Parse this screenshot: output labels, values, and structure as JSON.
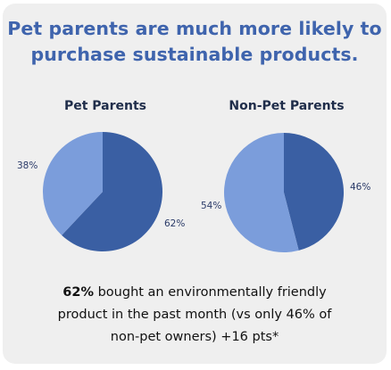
{
  "headline": {
    "line1": "Pet parents are much more likely to",
    "line2": "purchase sustainable products."
  },
  "colors": {
    "dark": "#3a5fa3",
    "light": "#7b9ddb",
    "title": "#3f64ad",
    "card": "#efefef"
  },
  "chart_data": [
    {
      "type": "pie",
      "title": "Pet Parents",
      "slices": [
        {
          "label": "62%",
          "value": 62,
          "color": "#3a5fa3"
        },
        {
          "label": "38%",
          "value": 38,
          "color": "#7b9ddb"
        }
      ]
    },
    {
      "type": "pie",
      "title": "Non-Pet Parents",
      "slices": [
        {
          "label": "46%",
          "value": 46,
          "color": "#3a5fa3"
        },
        {
          "label": "54%",
          "value": 54,
          "color": "#7b9ddb"
        }
      ]
    }
  ],
  "summary": {
    "highlight": "62%",
    "line1_rest": " bought an environmentally friendly",
    "line2": "product in the past month (vs only 46% of",
    "line3": "non-pet owners) +16 pts*"
  }
}
